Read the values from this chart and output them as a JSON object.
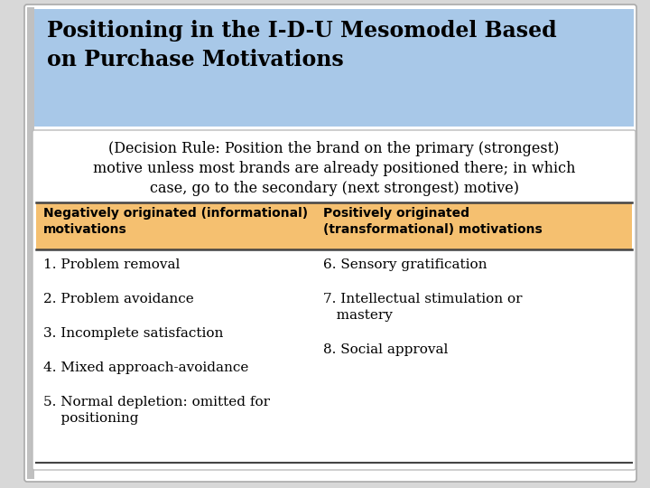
{
  "title_line1": "Positioning in the I-D-U Mesomodel Based",
  "title_line2": "on Purchase Motivations",
  "title_bg": "#a8c8e8",
  "title_fontsize": 17,
  "title_color": "#000000",
  "subtitle": "(Decision Rule: Position the brand on the primary (strongest)\nmotive unless most brands are already positioned there; in which\ncase, go to the secondary (next strongest) motive)",
  "subtitle_fontsize": 11.5,
  "header_bg": "#f5c070",
  "header_left": "Negatively originated (informational)\nmotivations",
  "header_right": "Positively originated\n(transformational) motivations",
  "header_fontsize": 10,
  "left_items": [
    "1. Problem removal",
    "2. Problem avoidance",
    "3. Incomplete satisfaction",
    "4. Mixed approach-avoidance",
    "5. Normal depletion: omitted for\n    positioning"
  ],
  "right_items": [
    "6. Sensory gratification",
    "7. Intellectual stimulation or\n   mastery",
    "8. Social approval"
  ],
  "item_fontsize": 11,
  "outer_bg": "#d8d8d8",
  "slide_bg": "#ffffff",
  "inner_bg": "#f5f5f5"
}
